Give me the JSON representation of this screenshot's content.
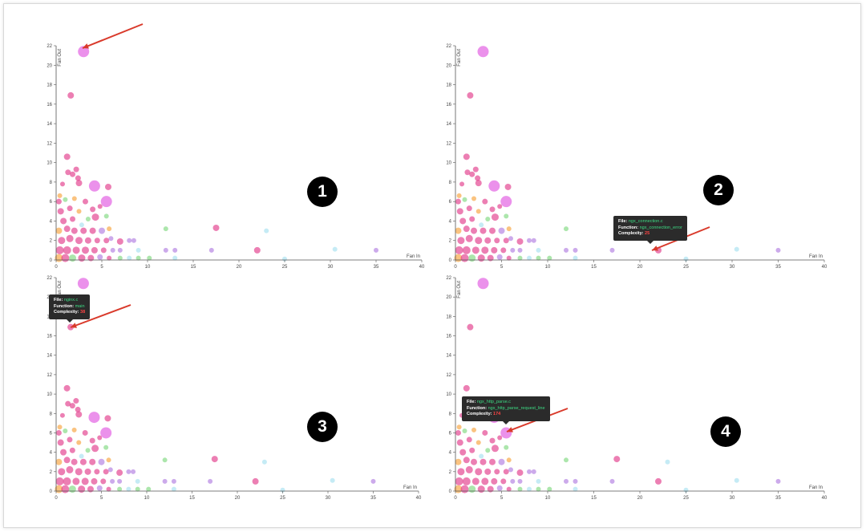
{
  "chart_data": [
    {
      "type": "scatter",
      "xlabel": "Fan In",
      "ylabel": "Fan Out",
      "xlim": [
        0,
        40
      ],
      "ylim": [
        0,
        22
      ],
      "xticks": [
        0,
        5,
        10,
        15,
        20,
        25,
        30,
        35,
        40
      ],
      "yticks": [
        0,
        2,
        4,
        6,
        8,
        10,
        12,
        14,
        16,
        18,
        20,
        22
      ],
      "badge": "1",
      "tooltip": null
    },
    {
      "type": "scatter",
      "xlabel": "Fan In",
      "ylabel": "Fan Out",
      "xlim": [
        0,
        40
      ],
      "ylim": [
        0,
        22
      ],
      "xticks": [
        0,
        5,
        10,
        15,
        20,
        25,
        30,
        35,
        40
      ],
      "yticks": [
        0,
        2,
        4,
        6,
        8,
        10,
        12,
        14,
        16,
        18,
        20,
        22
      ],
      "badge": "2",
      "tooltip": {
        "file_label": "File:",
        "file": "ngx_connection.c",
        "function_label": "Function:",
        "function": "ngx_connection_error",
        "complexity_label": "Complexity:",
        "complexity": "25"
      }
    },
    {
      "type": "scatter",
      "xlabel": "Fan In",
      "ylabel": "Fan Out",
      "xlim": [
        0,
        40
      ],
      "ylim": [
        0,
        22
      ],
      "xticks": [
        0,
        5,
        10,
        15,
        20,
        25,
        30,
        35,
        40
      ],
      "yticks": [
        0,
        2,
        4,
        6,
        8,
        10,
        12,
        14,
        16,
        18,
        20,
        22
      ],
      "badge": "3",
      "tooltip": {
        "file_label": "File:",
        "file": "nginx.c",
        "function_label": "Function:",
        "function": "main",
        "complexity_label": "Complexity:",
        "complexity": "38"
      }
    },
    {
      "type": "scatter",
      "xlabel": "Fan In",
      "ylabel": "Fan Out",
      "xlim": [
        0,
        40
      ],
      "ylim": [
        0,
        22
      ],
      "xticks": [
        0,
        5,
        10,
        15,
        20,
        25,
        30,
        35,
        40
      ],
      "yticks": [
        0,
        2,
        4,
        6,
        8,
        10,
        12,
        14,
        16,
        18,
        20,
        22
      ],
      "badge": "4",
      "tooltip": {
        "file_label": "File:",
        "file": "ngx_http_parse.c",
        "function_label": "Function:",
        "function": "ngx_http_parse_request_line",
        "complexity_label": "Complexity:",
        "complexity": "174"
      }
    }
  ],
  "points": [
    {
      "x": 3,
      "y": 21.4,
      "r": 7,
      "c": "#e056e0"
    },
    {
      "x": 1.6,
      "y": 16.9,
      "r": 4,
      "c": "#e23a8a"
    },
    {
      "x": 1.2,
      "y": 10.6,
      "r": 4,
      "c": "#e23a8a"
    },
    {
      "x": 1.3,
      "y": 9.0,
      "r": 3.5,
      "c": "#e23a8a"
    },
    {
      "x": 1.8,
      "y": 8.8,
      "r": 3.5,
      "c": "#e23a8a"
    },
    {
      "x": 2.2,
      "y": 9.3,
      "r": 3.5,
      "c": "#e23a8a"
    },
    {
      "x": 2.4,
      "y": 8.4,
      "r": 3.5,
      "c": "#e23a8a"
    },
    {
      "x": 2.5,
      "y": 7.9,
      "r": 4,
      "c": "#e23a8a"
    },
    {
      "x": 0.7,
      "y": 7.8,
      "r": 3,
      "c": "#e23a8a"
    },
    {
      "x": 4.2,
      "y": 7.6,
      "r": 7,
      "c": "#e056e0"
    },
    {
      "x": 5.7,
      "y": 7.5,
      "r": 4,
      "c": "#e23a8a"
    },
    {
      "x": 5.5,
      "y": 6.0,
      "r": 7,
      "c": "#e056e0"
    },
    {
      "x": 0.4,
      "y": 6.6,
      "r": 3,
      "c": "#f7a33c"
    },
    {
      "x": 0.3,
      "y": 6.0,
      "r": 3.5,
      "c": "#e23a8a"
    },
    {
      "x": 1.0,
      "y": 6.2,
      "r": 3,
      "c": "#7fd97f"
    },
    {
      "x": 2.0,
      "y": 6.3,
      "r": 3,
      "c": "#f7a33c"
    },
    {
      "x": 3.2,
      "y": 6.0,
      "r": 3.5,
      "c": "#e23a8a"
    },
    {
      "x": 4.0,
      "y": 5.2,
      "r": 3.5,
      "c": "#e23a8a"
    },
    {
      "x": 4.8,
      "y": 5.5,
      "r": 3,
      "c": "#e23a8a"
    },
    {
      "x": 4.3,
      "y": 4.4,
      "r": 4.5,
      "c": "#e23a8a"
    },
    {
      "x": 5.5,
      "y": 4.5,
      "r": 3,
      "c": "#7fd97f"
    },
    {
      "x": 0.5,
      "y": 5.0,
      "r": 4,
      "c": "#e23a8a"
    },
    {
      "x": 1.5,
      "y": 5.3,
      "r": 3.5,
      "c": "#e23a8a"
    },
    {
      "x": 2.5,
      "y": 5.0,
      "r": 3,
      "c": "#f7a33c"
    },
    {
      "x": 3.5,
      "y": 4.2,
      "r": 3,
      "c": "#7fd97f"
    },
    {
      "x": 0.8,
      "y": 4.0,
      "r": 4,
      "c": "#e23a8a"
    },
    {
      "x": 1.8,
      "y": 4.2,
      "r": 3.5,
      "c": "#e23a8a"
    },
    {
      "x": 2.8,
      "y": 3.6,
      "r": 3,
      "c": "#a6e0f0"
    },
    {
      "x": 0.3,
      "y": 3.0,
      "r": 4,
      "c": "#f7a33c"
    },
    {
      "x": 1.2,
      "y": 3.2,
      "r": 4,
      "c": "#e23a8a"
    },
    {
      "x": 2.0,
      "y": 3.0,
      "r": 4,
      "c": "#e23a8a"
    },
    {
      "x": 3.0,
      "y": 3.0,
      "r": 4,
      "c": "#e23a8a"
    },
    {
      "x": 4.0,
      "y": 3.0,
      "r": 4,
      "c": "#e23a8a"
    },
    {
      "x": 5.0,
      "y": 3.0,
      "r": 4,
      "c": "#b07ce0"
    },
    {
      "x": 5.8,
      "y": 3.2,
      "r": 3,
      "c": "#f7a33c"
    },
    {
      "x": 0.6,
      "y": 2.0,
      "r": 4.5,
      "c": "#e23a8a"
    },
    {
      "x": 1.5,
      "y": 2.2,
      "r": 4.5,
      "c": "#e23a8a"
    },
    {
      "x": 2.5,
      "y": 2.0,
      "r": 4.5,
      "c": "#e23a8a"
    },
    {
      "x": 3.5,
      "y": 2.0,
      "r": 4,
      "c": "#e23a8a"
    },
    {
      "x": 4.5,
      "y": 2.0,
      "r": 3.5,
      "c": "#e23a8a"
    },
    {
      "x": 5.5,
      "y": 2.0,
      "r": 3.5,
      "c": "#e23a8a"
    },
    {
      "x": 6.0,
      "y": 2.2,
      "r": 3,
      "c": "#b07ce0"
    },
    {
      "x": 7.0,
      "y": 1.9,
      "r": 4,
      "c": "#e23a8a"
    },
    {
      "x": 8.0,
      "y": 2.0,
      "r": 3,
      "c": "#b07ce0"
    },
    {
      "x": 8.5,
      "y": 2.0,
      "r": 3,
      "c": "#b07ce0"
    },
    {
      "x": 0.4,
      "y": 1.0,
      "r": 5,
      "c": "#e23a8a"
    },
    {
      "x": 1.2,
      "y": 1.0,
      "r": 5,
      "c": "#e23a8a"
    },
    {
      "x": 2.2,
      "y": 1.0,
      "r": 4.5,
      "c": "#e23a8a"
    },
    {
      "x": 3.2,
      "y": 1.0,
      "r": 4.5,
      "c": "#e23a8a"
    },
    {
      "x": 4.2,
      "y": 1.0,
      "r": 4,
      "c": "#e23a8a"
    },
    {
      "x": 5.2,
      "y": 1.0,
      "r": 3.5,
      "c": "#e23a8a"
    },
    {
      "x": 6.2,
      "y": 1.0,
      "r": 3,
      "c": "#b07ce0"
    },
    {
      "x": 7.0,
      "y": 1.0,
      "r": 3,
      "c": "#b07ce0"
    },
    {
      "x": 0.3,
      "y": 0.2,
      "r": 5,
      "c": "#f7a33c"
    },
    {
      "x": 1.0,
      "y": 0.2,
      "r": 5,
      "c": "#e23a8a"
    },
    {
      "x": 1.8,
      "y": 0.2,
      "r": 4.5,
      "c": "#7fd97f"
    },
    {
      "x": 2.8,
      "y": 0.2,
      "r": 4.5,
      "c": "#e23a8a"
    },
    {
      "x": 3.8,
      "y": 0.2,
      "r": 4,
      "c": "#e23a8a"
    },
    {
      "x": 4.8,
      "y": 0.3,
      "r": 3.5,
      "c": "#b07ce0"
    },
    {
      "x": 5.8,
      "y": 0.2,
      "r": 3,
      "c": "#e23a8a"
    },
    {
      "x": 7.0,
      "y": 0.2,
      "r": 3,
      "c": "#7fd97f"
    },
    {
      "x": 8.0,
      "y": 0.2,
      "r": 3,
      "c": "#a6e0f0"
    },
    {
      "x": 9.0,
      "y": 0.2,
      "r": 3,
      "c": "#7fd97f"
    },
    {
      "x": 10.2,
      "y": 0.2,
      "r": 3,
      "c": "#7fd97f"
    },
    {
      "x": 9.0,
      "y": 1.0,
      "r": 3,
      "c": "#a6e0f0"
    },
    {
      "x": 12.0,
      "y": 3.2,
      "r": 3,
      "c": "#7fd97f"
    },
    {
      "x": 12.0,
      "y": 1.0,
      "r": 3,
      "c": "#b07ce0"
    },
    {
      "x": 13.0,
      "y": 1.0,
      "r": 3,
      "c": "#b07ce0"
    },
    {
      "x": 13.0,
      "y": 0.2,
      "r": 3,
      "c": "#a6e0f0"
    },
    {
      "x": 17.0,
      "y": 1.0,
      "r": 3,
      "c": "#b07ce0"
    },
    {
      "x": 17.5,
      "y": 3.3,
      "r": 4,
      "c": "#e23a8a"
    },
    {
      "x": 22.0,
      "y": 1.0,
      "r": 4,
      "c": "#e23a8a"
    },
    {
      "x": 23.0,
      "y": 3.0,
      "r": 3,
      "c": "#a6e0f0"
    },
    {
      "x": 25.0,
      "y": 0.1,
      "r": 3,
      "c": "#a6e0f0"
    },
    {
      "x": 30.5,
      "y": 1.1,
      "r": 3,
      "c": "#a6e0f0"
    },
    {
      "x": 35.0,
      "y": 1.0,
      "r": 3,
      "c": "#b07ce0"
    }
  ]
}
